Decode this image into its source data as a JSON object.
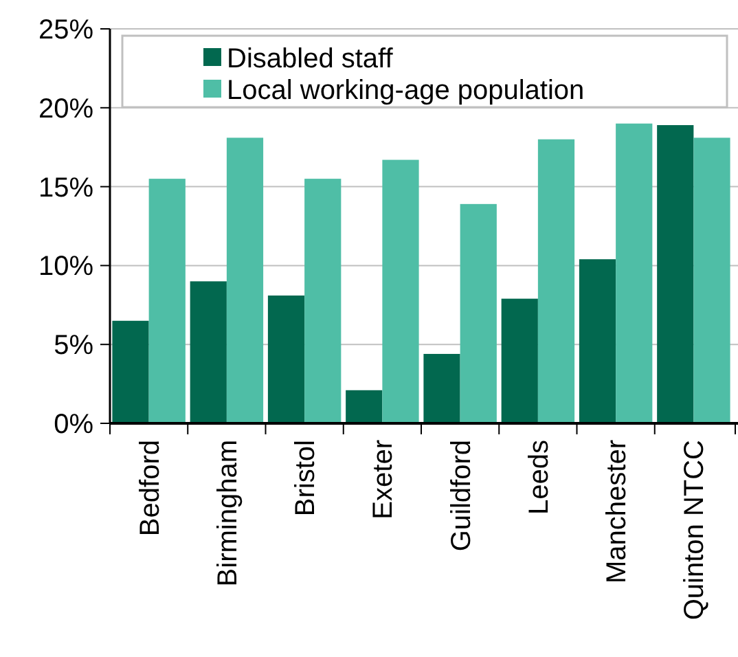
{
  "chart_data": {
    "type": "bar",
    "categories": [
      "Bedford",
      "Birmingham",
      "Bristol",
      "Exeter",
      "Guildford",
      "Leeds",
      "Manchester",
      "Quinton NTCC"
    ],
    "series": [
      {
        "name": "Disabled staff",
        "color": "#02684f",
        "values": [
          6.5,
          9.0,
          8.1,
          2.1,
          4.4,
          7.9,
          10.4,
          18.9
        ]
      },
      {
        "name": "Local working-age population",
        "color": "#4fbea6",
        "values": [
          15.5,
          18.1,
          15.5,
          16.7,
          13.9,
          18.0,
          19.0,
          18.1
        ]
      }
    ],
    "ylim": [
      0,
      25
    ],
    "yticks": [
      {
        "value": 0,
        "label": "0%"
      },
      {
        "value": 5,
        "label": "5%"
      },
      {
        "value": 10,
        "label": "10%"
      },
      {
        "value": 15,
        "label": "15%"
      },
      {
        "value": 20,
        "label": "20%"
      },
      {
        "value": 25,
        "label": "25%"
      }
    ],
    "grid": "y",
    "legend": "top"
  }
}
